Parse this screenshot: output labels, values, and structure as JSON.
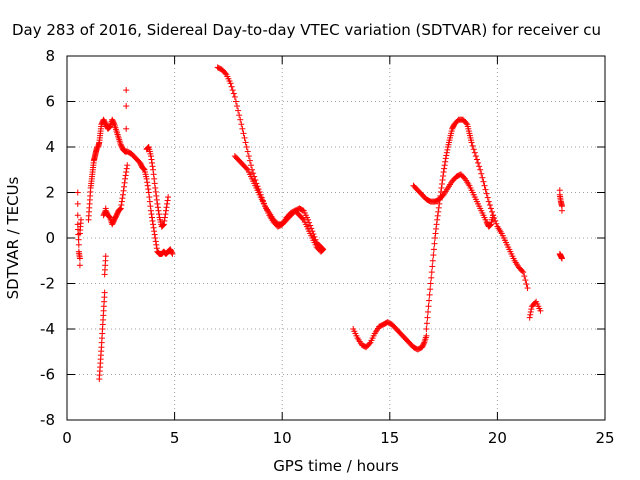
{
  "chart_data": {
    "type": "scatter",
    "title": "Day 283 of 2016, Sidereal Day-to-day VTEC variation (SDTVAR) for receiver cu",
    "xlabel": "GPS time / hours",
    "ylabel": "SDTVAR / TECUs",
    "xlim": [
      0,
      25
    ],
    "ylim": [
      -8,
      8
    ],
    "xticks": [
      "0",
      "5",
      "10",
      "15",
      "20",
      "25"
    ],
    "yticks": [
      "-8",
      "-6",
      "-4",
      "-2",
      "0",
      "2",
      "4",
      "6",
      "8"
    ],
    "grid": true,
    "marker": "plus",
    "color": "#ff0000",
    "series": [
      {
        "x": [
          0.5,
          0.5,
          0.5,
          0.5,
          0.55,
          0.55,
          0.6,
          0.6,
          0.6,
          0.65,
          1.0,
          1.05,
          1.1,
          1.15,
          1.2,
          1.25,
          1.3,
          1.35,
          1.4,
          1.45,
          1.5,
          1.55,
          1.6,
          1.7,
          1.8,
          1.9,
          2.0,
          2.1,
          2.2,
          2.3,
          2.4,
          2.5,
          2.6,
          2.7,
          2.8,
          3.0,
          3.2,
          3.4,
          3.5,
          3.6,
          3.7,
          3.8,
          3.9,
          4.0,
          4.1,
          4.2,
          4.3,
          4.4,
          4.5,
          4.6,
          4.7,
          4.8,
          4.9,
          1.5,
          1.55,
          1.6,
          1.65,
          1.7,
          1.75,
          1.75,
          1.8,
          1.8,
          1.7,
          1.8,
          1.9,
          2.0,
          2.1,
          2.2,
          2.3,
          2.4,
          2.5,
          2.6,
          2.7,
          2.8,
          2.75,
          2.75,
          2.75,
          3.7,
          3.8,
          3.9,
          4.0,
          4.1,
          4.2,
          4.3,
          4.4,
          4.5,
          4.6,
          4.7,
          7.0,
          7.2,
          7.4,
          7.6,
          7.8,
          8.0,
          8.2,
          8.4,
          8.6,
          8.8,
          9.0,
          9.2,
          9.4,
          9.6,
          9.8,
          10.0,
          10.2,
          10.4,
          10.6,
          10.8,
          11.0,
          11.2,
          11.4,
          11.6,
          11.8,
          11.9,
          7.8,
          8.0,
          8.2,
          8.4,
          8.6,
          8.8,
          9.0,
          9.2,
          9.4,
          9.6,
          9.8,
          10.0,
          10.2,
          10.4,
          10.6,
          10.8,
          11.0,
          11.2,
          11.4,
          11.6,
          11.8,
          11.9,
          13.3,
          13.5,
          13.7,
          13.9,
          14.1,
          14.3,
          14.5,
          14.7,
          14.9,
          15.1,
          15.3,
          15.5,
          15.7,
          15.9,
          16.1,
          16.3,
          16.5,
          16.6,
          16.7,
          16.7,
          16.8,
          16.9,
          17.0,
          17.1,
          17.2,
          17.3,
          17.4,
          17.5,
          17.6,
          17.7,
          17.8,
          17.9,
          18.0,
          18.2,
          18.4,
          18.6,
          18.7,
          18.8,
          19.0,
          19.2,
          19.4,
          19.6,
          19.8,
          20.0,
          20.2,
          20.4,
          20.6,
          20.8,
          21.0,
          21.2,
          21.4,
          21.5,
          21.6,
          21.8,
          22.0,
          16.1,
          16.3,
          16.5,
          16.7,
          16.9,
          17.1,
          17.3,
          17.5,
          17.7,
          17.9,
          18.1,
          18.3,
          18.5,
          18.7,
          18.9,
          19.1,
          19.3,
          19.5,
          19.6,
          19.7,
          19.8,
          22.9,
          22.9,
          22.95,
          23.0,
          23.0,
          22.9,
          22.95,
          23.0
        ],
        "y": [
          2.0,
          1.5,
          1.0,
          0.6,
          -0.3,
          -0.6,
          -0.9,
          -1.2,
          0.2,
          0.8,
          0.8,
          1.5,
          2.2,
          2.6,
          3.0,
          3.4,
          3.6,
          3.8,
          4.0,
          4.0,
          4.2,
          4.6,
          5.0,
          5.2,
          5.0,
          4.8,
          4.9,
          5.2,
          5.0,
          4.7,
          4.4,
          4.1,
          3.9,
          3.8,
          3.8,
          3.7,
          3.5,
          3.3,
          3.1,
          3.0,
          2.6,
          2.0,
          1.2,
          0.6,
          0.0,
          -0.6,
          -0.7,
          -0.7,
          -0.6,
          -0.7,
          -0.6,
          -0.5,
          -0.7,
          -6.2,
          -5.5,
          -4.8,
          -4.0,
          -3.2,
          -2.4,
          -1.6,
          -0.8,
          1.3,
          1.0,
          1.2,
          1.0,
          0.9,
          0.6,
          0.8,
          1.0,
          1.2,
          1.3,
          1.9,
          2.6,
          3.2,
          4.8,
          5.8,
          6.5,
          3.9,
          4.0,
          3.6,
          3.0,
          2.2,
          1.5,
          0.9,
          0.5,
          0.6,
          1.2,
          1.8,
          7.5,
          7.4,
          7.2,
          6.8,
          6.2,
          5.4,
          4.6,
          3.8,
          3.0,
          2.4,
          1.9,
          1.4,
          1.1,
          0.8,
          0.6,
          0.6,
          0.8,
          1.0,
          1.2,
          1.3,
          1.2,
          0.8,
          0.3,
          -0.2,
          -0.4,
          -0.5,
          3.6,
          3.4,
          3.2,
          3.0,
          2.6,
          2.2,
          1.8,
          1.4,
          1.0,
          0.7,
          0.5,
          0.6,
          0.9,
          1.1,
          1.2,
          1.0,
          0.8,
          0.4,
          0.0,
          -0.4,
          -0.6,
          -0.5,
          -4.0,
          -4.4,
          -4.7,
          -4.8,
          -4.6,
          -4.2,
          -3.9,
          -3.8,
          -3.7,
          -3.8,
          -4.0,
          -4.2,
          -4.4,
          -4.6,
          -4.8,
          -4.9,
          -4.8,
          -4.6,
          -4.3,
          -4.0,
          -3.0,
          -2.0,
          -1.0,
          0.0,
          0.8,
          1.5,
          2.2,
          2.9,
          3.5,
          4.0,
          4.4,
          4.8,
          5.0,
          5.2,
          5.2,
          5.0,
          4.6,
          4.2,
          3.6,
          3.0,
          2.3,
          1.6,
          1.0,
          0.5,
          0.2,
          -0.2,
          -0.6,
          -1.0,
          -1.3,
          -1.5,
          -2.2,
          -3.5,
          -3.0,
          -2.8,
          -3.2,
          2.3,
          2.1,
          1.9,
          1.7,
          1.6,
          1.6,
          1.7,
          1.9,
          2.2,
          2.5,
          2.7,
          2.8,
          2.6,
          2.3,
          1.9,
          1.5,
          1.1,
          0.7,
          0.5,
          0.6,
          1.0,
          2.1,
          1.9,
          1.6,
          1.4,
          1.2,
          -0.7,
          -0.8,
          -0.9
        ]
      }
    ]
  }
}
